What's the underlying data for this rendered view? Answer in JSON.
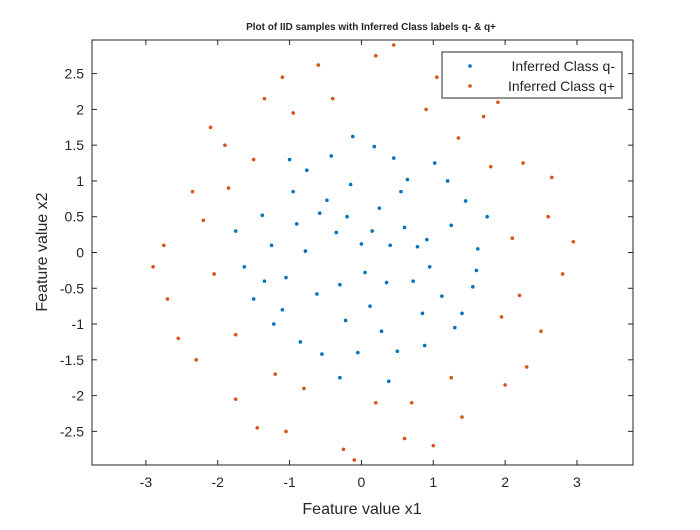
{
  "chart_data": {
    "type": "scatter",
    "title": "Plot of IID samples with Inferred Class labels q- & q+",
    "xlabel": "Feature value x1",
    "ylabel": "Feature value x2",
    "xlim": [
      -3.0,
      3.0
    ],
    "ylim": [
      -2.97,
      2.97
    ],
    "xticks": [
      -3,
      -2,
      -1,
      0,
      1,
      2,
      3
    ],
    "xtick_labels": [
      "-3",
      "-2",
      "-1",
      "0",
      "1",
      "2",
      "3"
    ],
    "yticks": [
      -2.5,
      -2,
      -1.5,
      -1,
      -0.5,
      0,
      0.5,
      1,
      1.5,
      2,
      2.5
    ],
    "ytick_labels": [
      "-2.5",
      "-2",
      "-1.5",
      "-1",
      "-0.5",
      "0",
      "0.5",
      "1",
      "1.5",
      "2",
      "2.5"
    ],
    "grid": false,
    "box": true,
    "legend_position": "top-right",
    "series": [
      {
        "name": "Inferred Class q-",
        "color": "#0072BD",
        "marker": "dot",
        "points": [
          [
            0.0,
            0.12
          ],
          [
            0.35,
            -0.42
          ],
          [
            -0.48,
            0.73
          ],
          [
            0.91,
            0.18
          ],
          [
            -0.22,
            -0.95
          ],
          [
            1.12,
            -0.61
          ],
          [
            -1.05,
            -0.35
          ],
          [
            0.64,
            1.02
          ],
          [
            -0.76,
            1.15
          ],
          [
            0.18,
            1.48
          ],
          [
            -0.12,
            1.62
          ],
          [
            1.45,
            0.72
          ],
          [
            -1.38,
            0.52
          ],
          [
            1.3,
            -1.05
          ],
          [
            -1.22,
            -1.0
          ],
          [
            0.5,
            -1.38
          ],
          [
            -0.55,
            -1.42
          ],
          [
            1.62,
            0.05
          ],
          [
            -1.63,
            -0.2
          ],
          [
            0.85,
            -0.85
          ],
          [
            -0.9,
            0.4
          ],
          [
            0.25,
            0.62
          ],
          [
            -0.35,
            0.28
          ],
          [
            0.6,
            0.35
          ],
          [
            -0.62,
            -0.58
          ],
          [
            0.12,
            -0.75
          ],
          [
            1.02,
            1.25
          ],
          [
            -1.0,
            1.3
          ],
          [
            1.55,
            -0.48
          ],
          [
            -1.5,
            -0.65
          ],
          [
            0.38,
            -1.8
          ],
          [
            -0.3,
            -1.75
          ],
          [
            0.78,
            0.08
          ],
          [
            -0.78,
            0.02
          ],
          [
            0.05,
            -0.28
          ],
          [
            1.25,
            0.38
          ],
          [
            -1.25,
            0.1
          ],
          [
            0.45,
            1.32
          ],
          [
            -0.42,
            1.35
          ],
          [
            0.72,
            -0.4
          ],
          [
            -0.15,
            0.95
          ],
          [
            0.95,
            -0.2
          ],
          [
            -1.1,
            -0.8
          ],
          [
            1.75,
            0.5
          ],
          [
            -1.75,
            0.3
          ],
          [
            0.28,
            -1.1
          ],
          [
            -0.85,
            -1.25
          ],
          [
            1.4,
            -0.85
          ],
          [
            -0.3,
            -0.45
          ],
          [
            0.55,
            0.85
          ],
          [
            1.2,
            1.0
          ],
          [
            -0.58,
            0.55
          ],
          [
            0.15,
            0.3
          ],
          [
            -0.05,
            -1.4
          ],
          [
            0.88,
            -1.3
          ],
          [
            -1.35,
            -0.4
          ],
          [
            1.6,
            -0.25
          ],
          [
            -0.95,
            0.85
          ],
          [
            0.4,
            0.1
          ],
          [
            -0.2,
            0.5
          ]
        ]
      },
      {
        "name": "Inferred Class q+",
        "color": "#D95319",
        "marker": "dot",
        "points": [
          [
            0.2,
            2.75
          ],
          [
            -0.6,
            2.62
          ],
          [
            1.05,
            2.45
          ],
          [
            -1.35,
            2.15
          ],
          [
            1.7,
            1.9
          ],
          [
            -1.9,
            1.5
          ],
          [
            2.25,
            1.25
          ],
          [
            -2.35,
            0.85
          ],
          [
            2.6,
            0.5
          ],
          [
            -2.75,
            0.1
          ],
          [
            2.8,
            -0.3
          ],
          [
            -2.7,
            -0.65
          ],
          [
            2.5,
            -1.1
          ],
          [
            -2.3,
            -1.5
          ],
          [
            2.0,
            -1.85
          ],
          [
            -1.75,
            -2.05
          ],
          [
            1.4,
            -2.3
          ],
          [
            -1.05,
            -2.5
          ],
          [
            0.6,
            -2.6
          ],
          [
            -0.25,
            -2.75
          ],
          [
            0.45,
            2.9
          ],
          [
            -1.1,
            2.45
          ],
          [
            1.9,
            2.1
          ],
          [
            -2.1,
            1.75
          ],
          [
            2.65,
            1.05
          ],
          [
            -2.9,
            -0.2
          ],
          [
            2.95,
            0.15
          ],
          [
            -2.55,
            -1.2
          ],
          [
            2.3,
            -1.6
          ],
          [
            -1.45,
            -2.45
          ],
          [
            1.0,
            -2.7
          ],
          [
            -0.1,
            -2.9
          ],
          [
            0.9,
            2.0
          ],
          [
            -0.95,
            1.95
          ],
          [
            1.8,
            1.2
          ],
          [
            -1.85,
            0.9
          ],
          [
            2.1,
            0.2
          ],
          [
            -2.05,
            -0.3
          ],
          [
            1.95,
            -0.9
          ],
          [
            -1.75,
            -1.15
          ],
          [
            1.25,
            -1.75
          ],
          [
            -0.8,
            -1.9
          ],
          [
            0.2,
            -2.1
          ],
          [
            -0.4,
            2.15
          ],
          [
            1.35,
            1.6
          ],
          [
            -1.5,
            1.3
          ],
          [
            2.2,
            -0.6
          ],
          [
            -2.2,
            0.45
          ],
          [
            0.7,
            -2.1
          ],
          [
            -1.2,
            -1.7
          ]
        ]
      }
    ]
  }
}
